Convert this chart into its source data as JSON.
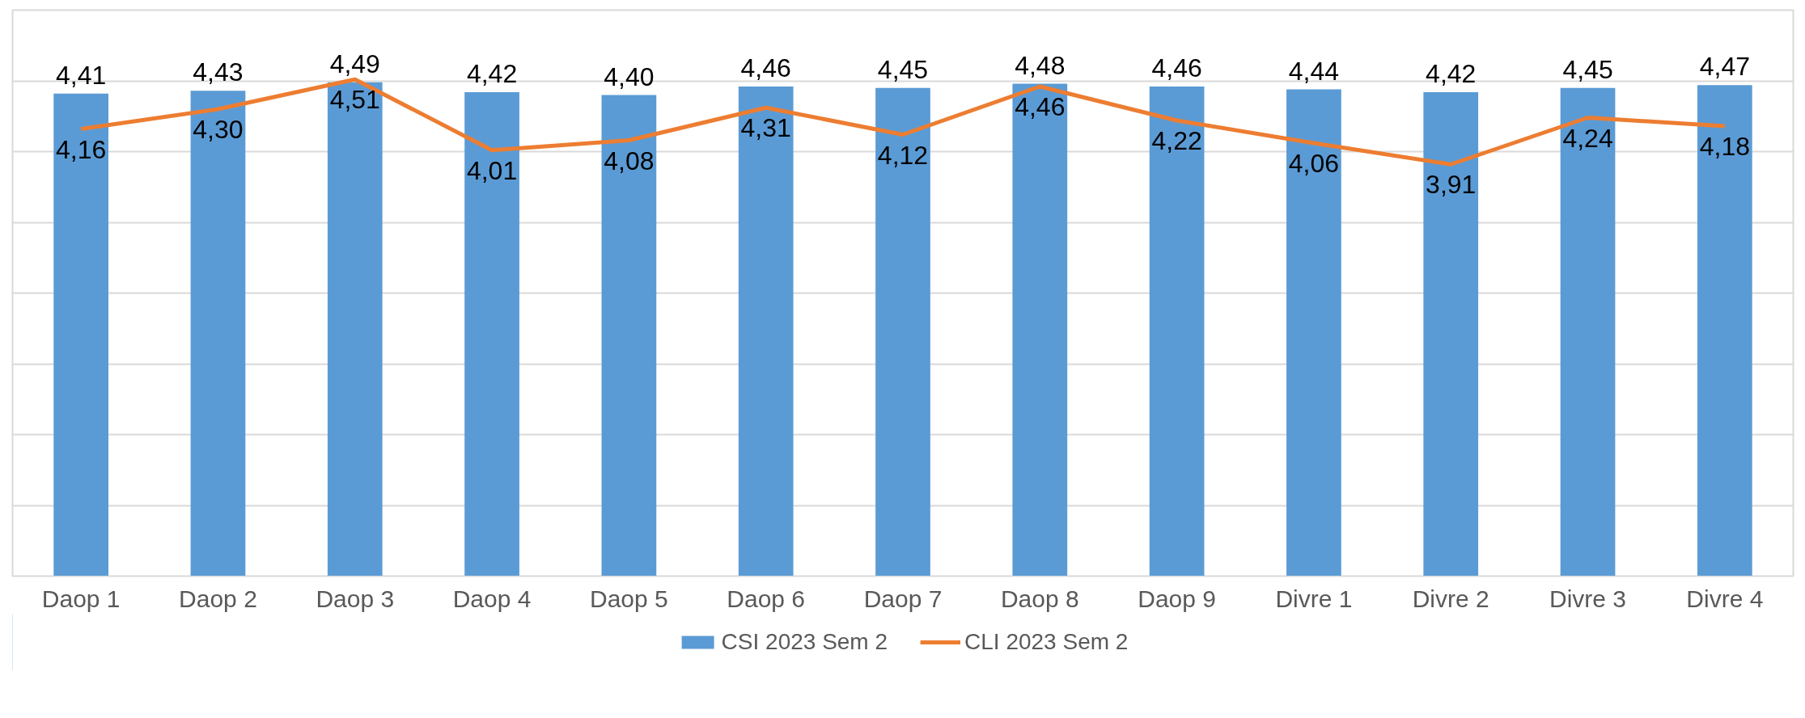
{
  "chart_data": {
    "type": "bar",
    "categories": [
      "Daop 1",
      "Daop 2",
      "Daop 3",
      "Daop 4",
      "Daop 5",
      "Daop 6",
      "Daop 7",
      "Daop 8",
      "Daop 9",
      "Divre 1",
      "Divre 2",
      "Divre 3",
      "Divre 4"
    ],
    "series": [
      {
        "name": "CSI 2023 Sem 2",
        "color": "#5b9bd5",
        "values": [
          4.41,
          4.43,
          4.49,
          4.42,
          4.4,
          4.46,
          4.45,
          4.48,
          4.46,
          4.44,
          4.42,
          4.45,
          4.47
        ],
        "value_labels": [
          "4,41",
          "4,43",
          "4,49",
          "4,42",
          "4,40",
          "4,46",
          "4,45",
          "4,48",
          "4,46",
          "4,44",
          "4,42",
          "4,45",
          "4,47"
        ]
      },
      {
        "name": "CLI 2023 Sem 2",
        "type": "line",
        "color": "#ed7d31",
        "values": [
          4.16,
          4.3,
          4.51,
          4.01,
          4.08,
          4.31,
          4.12,
          4.46,
          4.22,
          4.06,
          3.91,
          4.24,
          4.18
        ],
        "value_labels": [
          "4,16",
          "4,30",
          "4,51",
          "4,01",
          "4,08",
          "4,31",
          "4,12",
          "4,46",
          "4,22",
          "4,06",
          "3,91",
          "4,24",
          "4,18"
        ]
      }
    ],
    "ylim": [
      1,
      5
    ],
    "yticks": [
      {
        "value": 1,
        "label": null
      },
      {
        "value": 1.5,
        "label": null
      },
      {
        "value": 2,
        "label": null
      },
      {
        "value": 2.5,
        "label": null
      },
      {
        "value": 3,
        "label": null
      },
      {
        "value": 3.5,
        "label": null
      },
      {
        "value": 4,
        "label": null
      },
      {
        "value": 4.5,
        "label": null
      },
      {
        "value": 5,
        "label": null
      }
    ],
    "tick_labels": "x",
    "grid": "y",
    "legend": "bottom"
  }
}
